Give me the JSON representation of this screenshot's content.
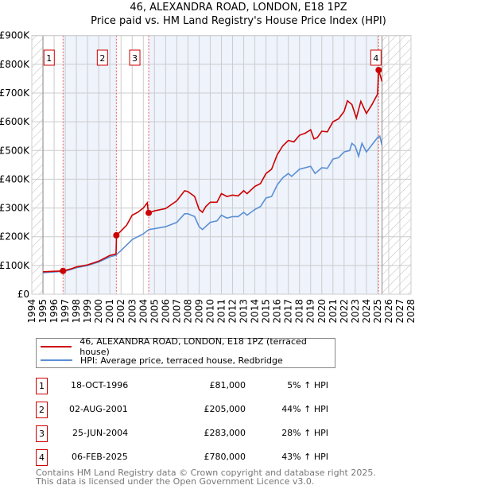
{
  "chart_data": {
    "type": "line",
    "title": "46, ALEXANDRA ROAD, LONDON, E18 1PZ",
    "subtitle": "Price paid vs. HM Land Registry's House Price Index (HPI)",
    "xlim": [
      1994,
      2028
    ],
    "ylim": [
      0,
      900000
    ],
    "y_ticks": [
      {
        "v": 0,
        "label": "£0"
      },
      {
        "v": 100000,
        "label": "£100K"
      },
      {
        "v": 200000,
        "label": "£200K"
      },
      {
        "v": 300000,
        "label": "£300K"
      },
      {
        "v": 400000,
        "label": "£400K"
      },
      {
        "v": 500000,
        "label": "£500K"
      },
      {
        "v": 600000,
        "label": "£600K"
      },
      {
        "v": 700000,
        "label": "£700K"
      },
      {
        "v": 800000,
        "label": "£800K"
      },
      {
        "v": 900000,
        "label": "£900K"
      }
    ],
    "x_ticks": [
      1994,
      1995,
      1996,
      1997,
      1998,
      1999,
      2000,
      2001,
      2002,
      2003,
      2004,
      2005,
      2006,
      2007,
      2008,
      2009,
      2010,
      2011,
      2012,
      2013,
      2014,
      2015,
      2016,
      2017,
      2018,
      2019,
      2020,
      2021,
      2022,
      2023,
      2024,
      2025,
      2026,
      2027,
      2028
    ],
    "grid": true,
    "series": [
      {
        "name": "46, ALEXANDRA ROAD, LONDON, E18 1PZ (terraced house)",
        "color": "#cc0000",
        "points": [
          [
            1995,
            78000
          ],
          [
            1996.8,
            81000
          ],
          [
            1997.5,
            88000
          ],
          [
            1998,
            95000
          ],
          [
            1999,
            102000
          ],
          [
            2000,
            115000
          ],
          [
            2000.5,
            125000
          ],
          [
            2001,
            135000
          ],
          [
            2001.55,
            140000
          ],
          [
            2001.6,
            205000
          ],
          [
            2002,
            220000
          ],
          [
            2002.5,
            240000
          ],
          [
            2003,
            275000
          ],
          [
            2003.5,
            285000
          ],
          [
            2004,
            300000
          ],
          [
            2004.35,
            318000
          ],
          [
            2004.45,
            283000
          ],
          [
            2005,
            290000
          ],
          [
            2006,
            298000
          ],
          [
            2007,
            325000
          ],
          [
            2007.7,
            360000
          ],
          [
            2008,
            357000
          ],
          [
            2008.6,
            340000
          ],
          [
            2009,
            295000
          ],
          [
            2009.3,
            285000
          ],
          [
            2009.6,
            305000
          ],
          [
            2010,
            320000
          ],
          [
            2010.6,
            320000
          ],
          [
            2011,
            350000
          ],
          [
            2011.5,
            340000
          ],
          [
            2012,
            345000
          ],
          [
            2012.5,
            342000
          ],
          [
            2013,
            360000
          ],
          [
            2013.3,
            350000
          ],
          [
            2014,
            375000
          ],
          [
            2014.5,
            385000
          ],
          [
            2015,
            420000
          ],
          [
            2015.5,
            435000
          ],
          [
            2016,
            485000
          ],
          [
            2016.5,
            516000
          ],
          [
            2017,
            535000
          ],
          [
            2017.5,
            530000
          ],
          [
            2018,
            553000
          ],
          [
            2018.5,
            560000
          ],
          [
            2019,
            572000
          ],
          [
            2019.3,
            540000
          ],
          [
            2019.6,
            545000
          ],
          [
            2020,
            567000
          ],
          [
            2020.5,
            565000
          ],
          [
            2021,
            600000
          ],
          [
            2021.5,
            610000
          ],
          [
            2022,
            636000
          ],
          [
            2022.3,
            673000
          ],
          [
            2022.7,
            660000
          ],
          [
            2023.1,
            613000
          ],
          [
            2023.5,
            671000
          ],
          [
            2024,
            629000
          ],
          [
            2024.5,
            660000
          ],
          [
            2025,
            696000
          ],
          [
            2025.1,
            780000
          ],
          [
            2025.4,
            740000
          ]
        ]
      },
      {
        "name": "HPI: Average price, terraced house, Redbridge",
        "color": "#5b8fd4",
        "points": [
          [
            1995,
            75000
          ],
          [
            1997,
            80000
          ],
          [
            1998,
            92000
          ],
          [
            1999,
            100000
          ],
          [
            2000,
            112000
          ],
          [
            2001,
            130000
          ],
          [
            2001.5,
            135000
          ],
          [
            2002,
            152000
          ],
          [
            2003,
            190000
          ],
          [
            2004,
            210000
          ],
          [
            2004.5,
            225000
          ],
          [
            2005,
            228000
          ],
          [
            2006,
            235000
          ],
          [
            2007,
            250000
          ],
          [
            2007.7,
            280000
          ],
          [
            2008,
            280000
          ],
          [
            2008.6,
            270000
          ],
          [
            2009,
            235000
          ],
          [
            2009.3,
            225000
          ],
          [
            2010,
            250000
          ],
          [
            2010.6,
            255000
          ],
          [
            2011,
            275000
          ],
          [
            2011.5,
            265000
          ],
          [
            2012,
            270000
          ],
          [
            2012.5,
            270000
          ],
          [
            2013,
            285000
          ],
          [
            2013.3,
            275000
          ],
          [
            2014,
            295000
          ],
          [
            2014.5,
            305000
          ],
          [
            2015,
            335000
          ],
          [
            2015.5,
            340000
          ],
          [
            2016,
            380000
          ],
          [
            2016.5,
            405000
          ],
          [
            2017,
            420000
          ],
          [
            2017.3,
            410000
          ],
          [
            2018,
            435000
          ],
          [
            2018.5,
            440000
          ],
          [
            2019,
            445000
          ],
          [
            2019.4,
            420000
          ],
          [
            2020,
            440000
          ],
          [
            2020.5,
            438000
          ],
          [
            2021,
            470000
          ],
          [
            2021.5,
            475000
          ],
          [
            2022,
            495000
          ],
          [
            2022.5,
            500000
          ],
          [
            2022.7,
            525000
          ],
          [
            2023,
            515000
          ],
          [
            2023.3,
            480000
          ],
          [
            2023.6,
            525000
          ],
          [
            2024,
            495000
          ],
          [
            2024.5,
            520000
          ],
          [
            2025,
            545000
          ],
          [
            2025.2,
            550000
          ],
          [
            2025.4,
            518000
          ]
        ]
      }
    ],
    "sales": [
      {
        "label": "1",
        "x": 1996.8,
        "y": 81000
      },
      {
        "label": "2",
        "x": 2001.58,
        "y": 205000
      },
      {
        "label": "3",
        "x": 2004.48,
        "y": 283000
      },
      {
        "label": "4",
        "x": 2025.1,
        "y": 780000
      }
    ],
    "data_end": 2025.4
  },
  "legend": {
    "property": "46, ALEXANDRA ROAD, LONDON, E18 1PZ (terraced house)",
    "hpi": "HPI: Average price, terraced house, Redbridge"
  },
  "transactions": [
    {
      "num": "1",
      "date": "18-OCT-1996",
      "price": "£81,000",
      "hpi": "5% ↑ HPI"
    },
    {
      "num": "2",
      "date": "02-AUG-2001",
      "price": "£205,000",
      "hpi": "44% ↑ HPI"
    },
    {
      "num": "3",
      "date": "25-JUN-2004",
      "price": "£283,000",
      "hpi": "28% ↑ HPI"
    },
    {
      "num": "4",
      "date": "06-FEB-2025",
      "price": "£780,000",
      "hpi": "43% ↑ HPI"
    }
  ],
  "footer": {
    "line1": "Contains HM Land Registry data © Crown copyright and database right 2025.",
    "line2": "This data is licensed under the Open Government Licence v3.0."
  }
}
